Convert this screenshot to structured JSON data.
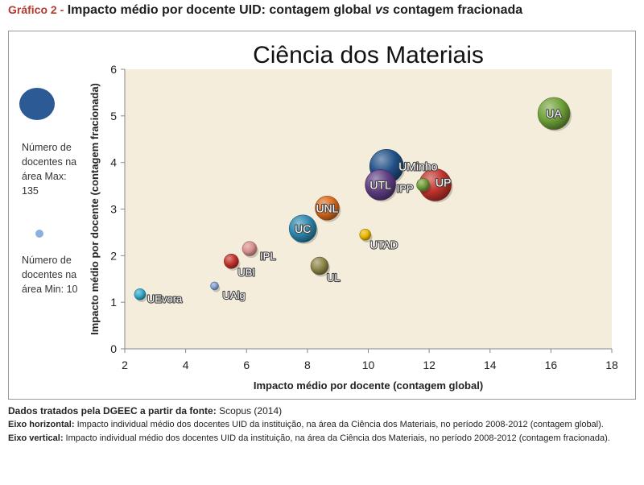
{
  "figure": {
    "label": "Gráfico 2 -",
    "title_part1": "Impacto médio por docente UID: contagem global ",
    "title_emph": "vs",
    "title_part2": " contagem fracionada"
  },
  "legend": {
    "max_text": "Número de docentes na área Max: 135",
    "min_text": "Número de docentes na área Min: 10",
    "max_value": 135,
    "min_value": 10
  },
  "chart_data": {
    "type": "scatter",
    "title": "Ciência dos Materiais",
    "xlabel": "Impacto médio por docente (contagem global)",
    "ylabel": "Impacto médio por docente (contagem fracionada)",
    "xlim": [
      2,
      18
    ],
    "ylim": [
      0,
      6
    ],
    "xticks": [
      2,
      4,
      6,
      8,
      10,
      12,
      14,
      16,
      18
    ],
    "yticks": [
      0,
      1,
      2,
      3,
      4,
      5,
      6
    ],
    "grid": false,
    "points": [
      {
        "label": "UA",
        "x": 16.1,
        "y": 5.05,
        "color": "#6fa038"
      },
      {
        "label": "UMinho",
        "x": 10.6,
        "y": 3.92,
        "color": "#1f4f86"
      },
      {
        "label": "UTL",
        "x": 10.4,
        "y": 3.52,
        "color": "#5e3d82"
      },
      {
        "label": "UP",
        "x": 12.2,
        "y": 3.52,
        "color": "#c0322b"
      },
      {
        "label": "IPP",
        "x": 11.8,
        "y": 3.52,
        "color": "#6f9a38"
      },
      {
        "label": "UNL",
        "x": 8.65,
        "y": 3.02,
        "color": "#d96a1c"
      },
      {
        "label": "UC",
        "x": 7.85,
        "y": 2.58,
        "color": "#2c86ad"
      },
      {
        "label": "UTAD",
        "x": 9.9,
        "y": 2.45,
        "color": "#e6b400"
      },
      {
        "label": "IPL",
        "x": 6.1,
        "y": 2.15,
        "color": "#d68f8d"
      },
      {
        "label": "UBI",
        "x": 5.5,
        "y": 1.88,
        "color": "#c0322b"
      },
      {
        "label": "UL",
        "x": 8.4,
        "y": 1.78,
        "color": "#8b8448"
      },
      {
        "label": "UAlg",
        "x": 4.95,
        "y": 1.35,
        "color": "#7f9fd1"
      },
      {
        "label": "UEvora",
        "x": 2.5,
        "y": 1.17,
        "color": "#35a7c8"
      }
    ]
  },
  "footer": {
    "source_label": "Dados tratados pela DGEEC a partir da fonte:",
    "source_value": "Scopus (2014)",
    "h_label": "Eixo horizontal:",
    "h_text": "Impacto individual médio dos docentes UID da instituição, na área da Ciência dos Materiais, no período 2008-2012 (contagem global).",
    "v_label": "Eixo vertical:",
    "v_text": "Impacto individual médio dos docentes UID da instituição, na área da Ciência dos Materiais, no período 2008-2012 (contagem fracionada)."
  }
}
